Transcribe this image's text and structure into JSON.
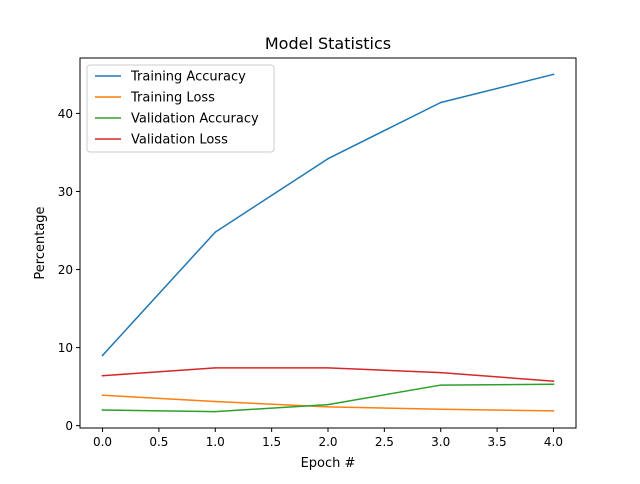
{
  "chart_data": {
    "type": "line",
    "title": "Model Statistics",
    "xlabel": "Epoch #",
    "ylabel": "Percentage",
    "x": [
      0,
      1,
      2,
      3,
      4
    ],
    "xlim": [
      -0.2,
      4.2
    ],
    "ylim": [
      -0.3,
      47.1
    ],
    "xticks": [
      0.0,
      0.5,
      1.0,
      1.5,
      2.0,
      2.5,
      3.0,
      3.5,
      4.0
    ],
    "xtick_labels": [
      "0.0",
      "0.5",
      "1.0",
      "1.5",
      "2.0",
      "2.5",
      "3.0",
      "3.5",
      "4.0"
    ],
    "yticks": [
      0,
      10,
      20,
      30,
      40
    ],
    "ytick_labels": [
      "0",
      "10",
      "20",
      "30",
      "40"
    ],
    "grid": false,
    "legend_position": "top-left",
    "series": [
      {
        "name": "Training Accuracy",
        "color": "#1f77b4",
        "values": [
          9.0,
          24.8,
          34.2,
          41.4,
          45.0
        ]
      },
      {
        "name": "Training Loss",
        "color": "#ff7f0e",
        "values": [
          3.9,
          3.1,
          2.4,
          2.1,
          1.9
        ]
      },
      {
        "name": "Validation Accuracy",
        "color": "#2ca02c",
        "values": [
          2.0,
          1.8,
          2.7,
          5.2,
          5.3
        ]
      },
      {
        "name": "Validation Loss",
        "color": "#d62728",
        "values": [
          6.4,
          7.4,
          7.4,
          6.8,
          5.7
        ]
      }
    ]
  }
}
